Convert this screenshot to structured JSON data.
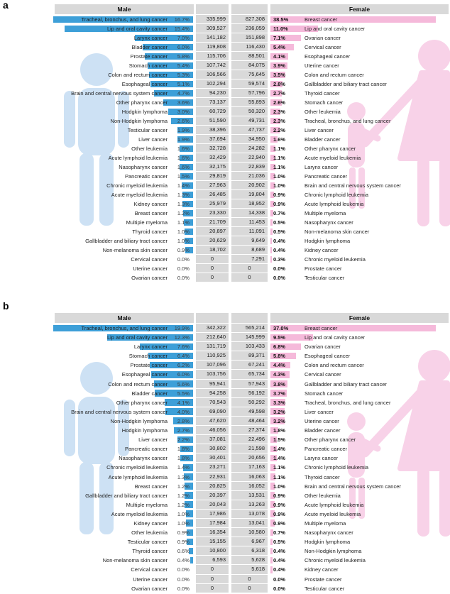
{
  "colors": {
    "male_bar": "#3d9fd8",
    "female_bar": "#f5b9da",
    "male_silhouette": "#cde1f4",
    "female_silhouette": "#f8d2e8",
    "header_background": "#d9d9d9",
    "count_cell_background": "#d9d9d9"
  },
  "chart_data": [
    {
      "type": "bar",
      "panel": "a",
      "orientation": "horizontal-paired",
      "legend_position": "none",
      "grid": false,
      "sides": {
        "male": {
          "header": "Male",
          "bar_color": "#3d9fd8",
          "max_pct": 16.7,
          "rows": [
            [
              "Tracheal, bronchus, and lung cancer",
              "16.7%",
              "335,999"
            ],
            [
              "Lip and oral cavity cancer",
              "15.4%",
              "309,527"
            ],
            [
              "Larynx cancer",
              "7.0%",
              "141,182"
            ],
            [
              "Bladder cancer",
              "6.0%",
              "119,808"
            ],
            [
              "Prostate cancer",
              "5.8%",
              "115,706"
            ],
            [
              "Stomach cancer",
              "5.4%",
              "107,742"
            ],
            [
              "Colon and rectum cancer",
              "5.3%",
              "106,566"
            ],
            [
              "Esophageal cancer",
              "5.1%",
              "102,294"
            ],
            [
              "Brain and central nervous system cancer",
              "4.7%",
              "94,230"
            ],
            [
              "Other pharynx cancer",
              "3.6%",
              "73,137"
            ],
            [
              "Hodgkin lymphoma",
              "3.0%",
              "60,729"
            ],
            [
              "Non-Hodgkin lymphoma",
              "2.6%",
              "51,590"
            ],
            [
              "Testicular cancer",
              "1.9%",
              "38,396"
            ],
            [
              "Liver cancer",
              "1.9%",
              "37,694"
            ],
            [
              "Other leukemia",
              "1.6%",
              "32,728"
            ],
            [
              "Acute lymphoid leukemia",
              "1.6%",
              "32,429"
            ],
            [
              "Nasopharynx cancer",
              "1.6%",
              "32,175"
            ],
            [
              "Pancreatic cancer",
              "1.5%",
              "29,819"
            ],
            [
              "Chronic myeloid leukemia",
              "1.4%",
              "27,963"
            ],
            [
              "Acute myeloid leukemia",
              "1.3%",
              "26,485"
            ],
            [
              "Kidney cancer",
              "1.3%",
              "25,979"
            ],
            [
              "Breast cancer",
              "1.2%",
              "23,330"
            ],
            [
              "Multiple myeloma",
              "1.1%",
              "21,709"
            ],
            [
              "Thyroid cancer",
              "1.0%",
              "20,897"
            ],
            [
              "Gallbladder and biliary tract cancer",
              "1.0%",
              "20,629"
            ],
            [
              "Non-melanoma skin cancer",
              "0.9%",
              "18,702"
            ],
            [
              "Cervical cancer",
              "0.0%",
              "0"
            ],
            [
              "Uterine cancer",
              "0.0%",
              "0"
            ],
            [
              "Ovarian cancer",
              "0.0%",
              "0"
            ]
          ]
        },
        "female": {
          "header": "Female",
          "bar_color": "#f5b9da",
          "max_pct": 38.5,
          "rows": [
            [
              "Breast cancer",
              "38.5%",
              "827,308"
            ],
            [
              "Lip and oral cavity cancer",
              "11.0%",
              "236,059"
            ],
            [
              "Ovarian cancer",
              "7.1%",
              "151,898"
            ],
            [
              "Cervical cancer",
              "5.4%",
              "116,430"
            ],
            [
              "Esophageal cancer",
              "4.1%",
              "88,501"
            ],
            [
              "Uterine cancer",
              "3.9%",
              "84,075"
            ],
            [
              "Colon and rectum cancer",
              "3.5%",
              "75,645"
            ],
            [
              "Gallbladder and biliary tract cancer",
              "2.8%",
              "59,574"
            ],
            [
              "Thyroid cancer",
              "2.7%",
              "57,796"
            ],
            [
              "Stomach cancer",
              "2.6%",
              "55,893"
            ],
            [
              "Other leukemia",
              "2.3%",
              "50,320"
            ],
            [
              "Tracheal, bronchus, and lung cancer",
              "2.3%",
              "49,731"
            ],
            [
              "Liver cancer",
              "2.2%",
              "47,737"
            ],
            [
              "Bladder cancer",
              "1.6%",
              "34,950"
            ],
            [
              "Other pharynx cancer",
              "1.1%",
              "24,282"
            ],
            [
              "Acute myeloid leukemia",
              "1.1%",
              "22,940"
            ],
            [
              "Larynx cancer",
              "1.1%",
              "22,839"
            ],
            [
              "Pancreatic cancer",
              "1.0%",
              "21,036"
            ],
            [
              "Brain and central nervous system cancer",
              "1.0%",
              "20,902"
            ],
            [
              "Chronic lymphoid leukemia",
              "0.9%",
              "19,804"
            ],
            [
              "Acute lymphoid leukemia",
              "0.9%",
              "18,952"
            ],
            [
              "Multiple myeloma",
              "0.7%",
              "14,338"
            ],
            [
              "Nasopharynx cancer",
              "0.5%",
              "11,453"
            ],
            [
              "Non-melanoma skin cancer",
              "0.5%",
              "11,091"
            ],
            [
              "Hodgkin lymphoma",
              "0.4%",
              "9,649"
            ],
            [
              "Kidney cancer",
              "0.4%",
              "8,689"
            ],
            [
              "Chronic myeloid leukemia",
              "0.3%",
              "7,291"
            ],
            [
              "Prostate cancer",
              "0.0%",
              "0"
            ],
            [
              "Testicular cancer",
              "0.0%",
              "0"
            ]
          ]
        }
      }
    },
    {
      "type": "bar",
      "panel": "b",
      "orientation": "horizontal-paired",
      "legend_position": "none",
      "grid": false,
      "sides": {
        "male": {
          "header": "Male",
          "bar_color": "#3d9fd8",
          "max_pct": 19.9,
          "rows": [
            [
              "Tracheal, bronchus, and lung cancer",
              "19.9%",
              "342,322"
            ],
            [
              "Lip and oral cavity cancer",
              "12.3%",
              "212,640"
            ],
            [
              "Larynx cancer",
              "7.6%",
              "131,719"
            ],
            [
              "Stomach cancer",
              "6.4%",
              "110,925"
            ],
            [
              "Prostate cancer",
              "6.2%",
              "107,096"
            ],
            [
              "Esophageal cancer",
              "6.0%",
              "103,756"
            ],
            [
              "Colon and rectum cancer",
              "5.6%",
              "95,941"
            ],
            [
              "Bladder cancer",
              "5.5%",
              "94,258"
            ],
            [
              "Other pharynx cancer",
              "4.1%",
              "70,543"
            ],
            [
              "Brain and central nervous system cancer",
              "4.0%",
              "69,090"
            ],
            [
              "Non-Hodgkin lymphoma",
              "2.8%",
              "47,620"
            ],
            [
              "Hodgkin lymphoma",
              "2.7%",
              "46,056"
            ],
            [
              "Liver cancer",
              "2.2%",
              "37,081"
            ],
            [
              "Pancreatic cancer",
              "1.8%",
              "30,802"
            ],
            [
              "Nasopharynx cancer",
              "1.8%",
              "30,401"
            ],
            [
              "Chronic myeloid leukemia",
              "1.4%",
              "23,271"
            ],
            [
              "Acute lymphoid leukemia",
              "1.3%",
              "22,931"
            ],
            [
              "Breast cancer",
              "1.2%",
              "20,825"
            ],
            [
              "Gallbladder and biliary tract cancer",
              "1.2%",
              "20,397"
            ],
            [
              "Multiple myeloma",
              "1.2%",
              "20,043"
            ],
            [
              "Acute myeloid leukemia",
              "1.0%",
              "17,986"
            ],
            [
              "Kidney cancer",
              "1.0%",
              "17,984"
            ],
            [
              "Other leukemia",
              "0.9%",
              "16,354"
            ],
            [
              "Testicular cancer",
              "0.9%",
              "15,155"
            ],
            [
              "Thyroid cancer",
              "0.6%",
              "10,800"
            ],
            [
              "Non-melanoma skin cancer",
              "0.4%",
              "6,593"
            ],
            [
              "Cervical cancer",
              "0.0%",
              "0"
            ],
            [
              "Uterine cancer",
              "0.0%",
              "0"
            ],
            [
              "Ovarian cancer",
              "0.0%",
              "0"
            ]
          ]
        },
        "female": {
          "header": "Female",
          "bar_color": "#f5b9da",
          "max_pct": 37.0,
          "rows": [
            [
              "Breast cancer",
              "37.0%",
              "565,214"
            ],
            [
              "Lip and oral cavity cancer",
              "9.5%",
              "145,999"
            ],
            [
              "Ovarian cancer",
              "6.8%",
              "103,433"
            ],
            [
              "Esophageal cancer",
              "5.8%",
              "89,371"
            ],
            [
              "Colon and rectum cancer",
              "4.4%",
              "67,241"
            ],
            [
              "Cervical cancer",
              "4.3%",
              "65,734"
            ],
            [
              "Gallbladder and biliary tract cancer",
              "3.8%",
              "57,943"
            ],
            [
              "Stomach cancer",
              "3.7%",
              "56,192"
            ],
            [
              "Tracheal, bronchus, and lung cancer",
              "3.3%",
              "50,292"
            ],
            [
              "Liver cancer",
              "3.2%",
              "49,598"
            ],
            [
              "Uterine cancer",
              "3.2%",
              "48,464"
            ],
            [
              "Bladder cancer",
              "1.8%",
              "27,374"
            ],
            [
              "Other pharynx cancer",
              "1.5%",
              "22,496"
            ],
            [
              "Pancreatic cancer",
              "1.4%",
              "21,598"
            ],
            [
              "Larynx cancer",
              "1.4%",
              "20,656"
            ],
            [
              "Chronic lymphoid leukemia",
              "1.1%",
              "17,163"
            ],
            [
              "Thyroid cancer",
              "1.1%",
              "16,063"
            ],
            [
              "Brain and central nervous system cancer",
              "1.0%",
              "16,052"
            ],
            [
              "Other leukemia",
              "0.9%",
              "13,531"
            ],
            [
              "Acute lymphoid leukemia",
              "0.9%",
              "13,263"
            ],
            [
              "Acute myeloid leukemia",
              "0.9%",
              "13,078"
            ],
            [
              "Multiple myeloma",
              "0.9%",
              "13,041"
            ],
            [
              "Nasopharynx cancer",
              "0.7%",
              "10,580"
            ],
            [
              "Hodgkin lymphoma",
              "0.5%",
              "6,967"
            ],
            [
              "Non-Hodgkin lymphoma",
              "0.4%",
              "6,318"
            ],
            [
              "Chronic myeloid leukemia",
              "0.4%",
              "5,628"
            ],
            [
              "Kidney cancer",
              "0.4%",
              "5,618"
            ],
            [
              "Prostate cancer",
              "0.0%",
              "0"
            ],
            [
              "Testicular cancer",
              "0.0%",
              "0"
            ]
          ]
        }
      }
    }
  ]
}
